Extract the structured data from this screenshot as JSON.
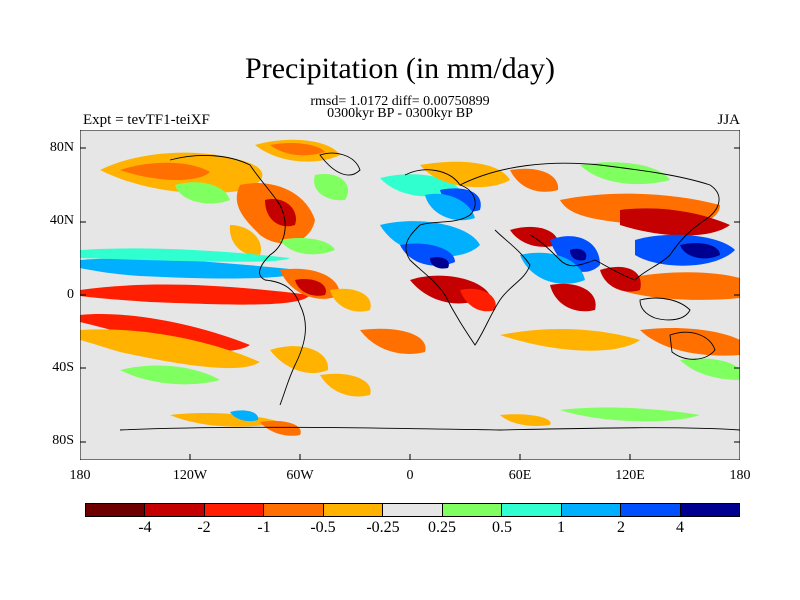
{
  "title": "Precipitation (in mm/day)",
  "subtitle_stats": "rmsd= 1.0172 diff= 0.00750899",
  "subtitle_period": "0300kyr BP - 0300kyr BP",
  "experiment_label": "Expt = tevTF1-teiXF",
  "season_label": "JJA",
  "lat_ticks": [
    "80N",
    "40N",
    "0",
    "40S",
    "80S"
  ],
  "lon_ticks": [
    "180",
    "120W",
    "60W",
    "0",
    "60E",
    "120E",
    "180"
  ],
  "colorbar": {
    "colors": [
      "#6e0000",
      "#c40000",
      "#ff1f00",
      "#ff7000",
      "#ffb300",
      "#e6e6e6",
      "#80ff60",
      "#30ffd0",
      "#00b0ff",
      "#0050ff",
      "#000090"
    ],
    "labels": [
      "-4",
      "-2",
      "-1",
      "-0.5",
      "-0.25",
      "0.25",
      "0.5",
      "1",
      "2",
      "4"
    ]
  }
}
